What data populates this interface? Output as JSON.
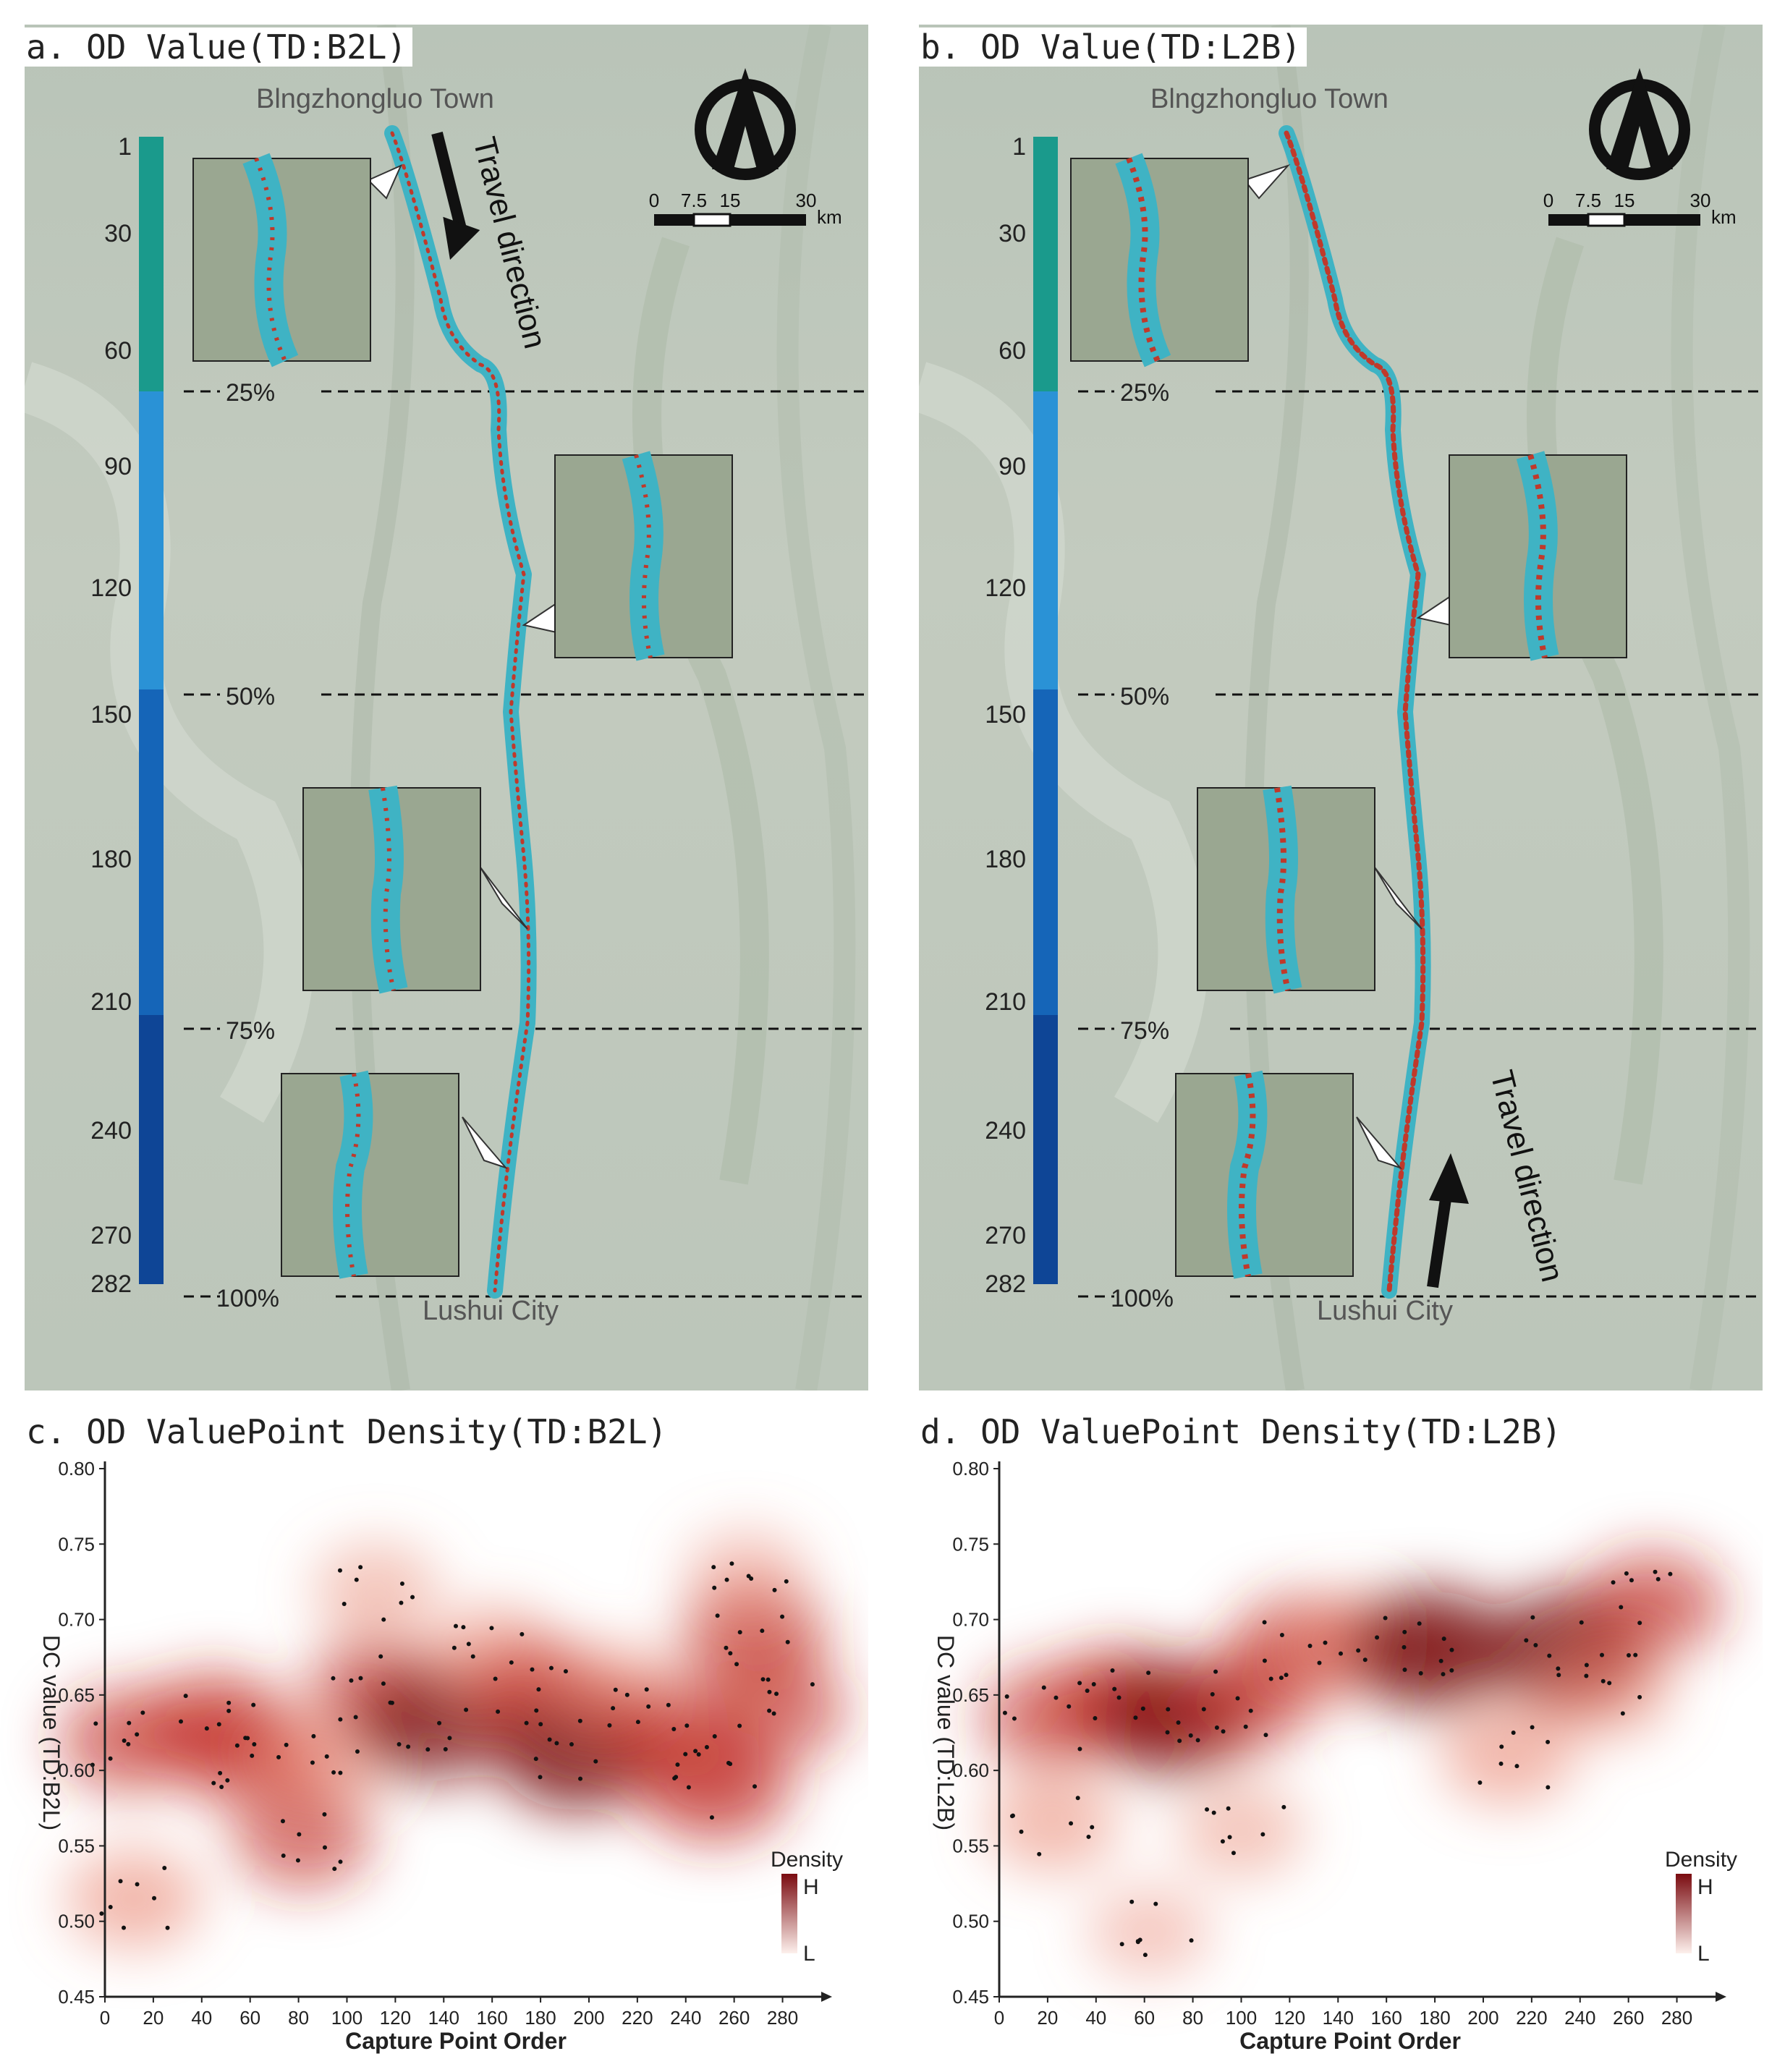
{
  "panels": {
    "a": {
      "title": "a. OD Value(TD:B2L)",
      "start_label": "Blngzhongluo Town",
      "end_label": "Lushui City",
      "direction_label": "Travel direction",
      "scale_ticks": [
        "0",
        "7.5",
        "15",
        "30"
      ],
      "scale_unit": "km",
      "order_ticks": [
        "1",
        "30",
        "60",
        "90",
        "120",
        "150",
        "180",
        "210",
        "240",
        "270",
        "282"
      ],
      "percent_marks": [
        "25%",
        "50%",
        "75%",
        "100%"
      ]
    },
    "b": {
      "title": "b. OD Value(TD:L2B)",
      "start_label": "Blngzhongluo Town",
      "end_label": "Lushui City",
      "direction_label": "Travel direction",
      "scale_ticks": [
        "0",
        "7.5",
        "15",
        "30"
      ],
      "scale_unit": "km",
      "order_ticks": [
        "1",
        "30",
        "60",
        "90",
        "120",
        "150",
        "180",
        "210",
        "240",
        "270",
        "282"
      ],
      "percent_marks": [
        "25%",
        "50%",
        "75%",
        "100%"
      ]
    },
    "c": {
      "title": "c. OD ValuePoint Density(TD:B2L)"
    },
    "d": {
      "title": "d. OD ValuePoint Density(TD:L2B)"
    }
  },
  "colors": {
    "q1": "#1a9a8c",
    "q2": "#2a92d6",
    "q3": "#1565b8",
    "q4": "#0e4596",
    "route_outer": "#3fb3c4",
    "route_core": "#c0392b",
    "density_high": "#7a0b10",
    "density_low": "#fdf0ec"
  },
  "chart_data": [
    {
      "type": "heatmap",
      "title": "c. OD ValuePoint Density(TD:B2L)",
      "xlabel": "Capture Point Order",
      "ylabel": "DC value (TD:B2L)",
      "xlim": [
        0,
        290
      ],
      "ylim": [
        0.45,
        0.8
      ],
      "xticks": [
        "0",
        "20",
        "40",
        "60",
        "80",
        "100",
        "120",
        "140",
        "160",
        "180",
        "200",
        "220",
        "240",
        "260",
        "280"
      ],
      "yticks": [
        "0.45",
        "0.50",
        "0.55",
        "0.60",
        "0.65",
        "0.70",
        "0.75",
        "0.80"
      ],
      "legend_title": "Density",
      "legend_high": "H",
      "legend_low": "L",
      "legend_position": "bottom-right",
      "hotspots": [
        {
          "x": 10,
          "y": 0.62,
          "d": 0.55
        },
        {
          "x": 45,
          "y": 0.63,
          "d": 0.6
        },
        {
          "x": 60,
          "y": 0.61,
          "d": 0.55
        },
        {
          "x": 88,
          "y": 0.605,
          "d": 0.45
        },
        {
          "x": 82,
          "y": 0.555,
          "d": 0.5
        },
        {
          "x": 112,
          "y": 0.655,
          "d": 0.5
        },
        {
          "x": 135,
          "y": 0.63,
          "d": 0.75
        },
        {
          "x": 160,
          "y": 0.675,
          "d": 0.45
        },
        {
          "x": 180,
          "y": 0.65,
          "d": 0.6
        },
        {
          "x": 195,
          "y": 0.612,
          "d": 0.85
        },
        {
          "x": 210,
          "y": 0.65,
          "d": 0.45
        },
        {
          "x": 235,
          "y": 0.625,
          "d": 0.55
        },
        {
          "x": 252,
          "y": 0.59,
          "d": 0.7
        },
        {
          "x": 268,
          "y": 0.688,
          "d": 0.6
        },
        {
          "x": 278,
          "y": 0.64,
          "d": 0.5
        },
        {
          "x": 12,
          "y": 0.515,
          "d": 0.45
        },
        {
          "x": 112,
          "y": 0.72,
          "d": 0.3
        },
        {
          "x": 265,
          "y": 0.73,
          "d": 0.25
        }
      ]
    },
    {
      "type": "heatmap",
      "title": "d. OD ValuePoint Density(TD:L2B)",
      "xlabel": "Capture Point Order",
      "ylabel": "DC value (TD:L2B)",
      "xlim": [
        0,
        290
      ],
      "ylim": [
        0.45,
        0.8
      ],
      "xticks": [
        "0",
        "20",
        "40",
        "60",
        "80",
        "100",
        "120",
        "140",
        "160",
        "180",
        "200",
        "220",
        "240",
        "260",
        "280"
      ],
      "yticks": [
        "0.45",
        "0.50",
        "0.55",
        "0.60",
        "0.65",
        "0.70",
        "0.75",
        "0.80"
      ],
      "legend_title": "Density",
      "legend_high": "H",
      "legend_low": "L",
      "legend_position": "bottom-right",
      "hotspots": [
        {
          "x": 20,
          "y": 0.635,
          "d": 0.5
        },
        {
          "x": 50,
          "y": 0.645,
          "d": 0.65
        },
        {
          "x": 72,
          "y": 0.635,
          "d": 0.8
        },
        {
          "x": 100,
          "y": 0.645,
          "d": 0.5
        },
        {
          "x": 125,
          "y": 0.68,
          "d": 0.6
        },
        {
          "x": 150,
          "y": 0.685,
          "d": 0.45
        },
        {
          "x": 178,
          "y": 0.68,
          "d": 0.9
        },
        {
          "x": 210,
          "y": 0.61,
          "d": 0.45
        },
        {
          "x": 235,
          "y": 0.68,
          "d": 0.85
        },
        {
          "x": 270,
          "y": 0.71,
          "d": 0.55
        },
        {
          "x": 22,
          "y": 0.565,
          "d": 0.4
        },
        {
          "x": 100,
          "y": 0.56,
          "d": 0.3
        },
        {
          "x": 62,
          "y": 0.493,
          "d": 0.25
        },
        {
          "x": 250,
          "y": 0.655,
          "d": 0.45
        }
      ]
    }
  ]
}
